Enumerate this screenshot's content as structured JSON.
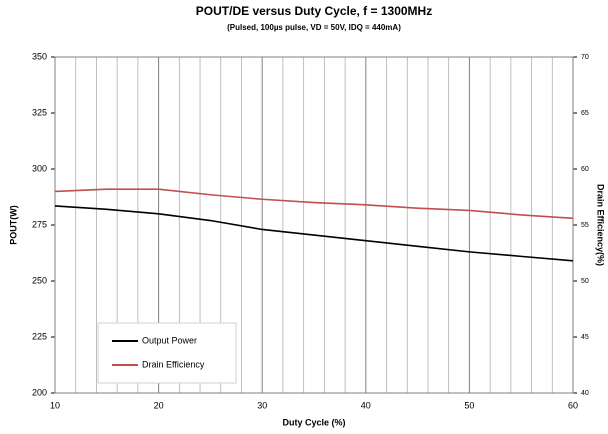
{
  "chart_data": {
    "type": "line",
    "title": "POUT/DE versus Duty Cycle, f = 1300MHz",
    "subtitle": "(Pulsed, 100µs pulse, VD = 50V, IDQ = 440mA)",
    "x_label": "Duty Cycle (%)",
    "y_label": "POUT(W)",
    "y2_label": "Drain Efficiency(%)",
    "x": [
      10,
      15,
      20,
      25,
      30,
      35,
      40,
      45,
      50,
      55,
      60
    ],
    "series": [
      {
        "name": "Output Power",
        "color": "#000000",
        "axis": "y",
        "values": [
          283.5,
          282,
          280,
          277,
          273,
          270.5,
          268,
          265.5,
          263,
          261,
          259
        ]
      },
      {
        "name": "Drain Efficiency",
        "color": "#c0504d",
        "axis": "y2",
        "values": [
          58,
          58.2,
          58.2,
          57.7,
          57.3,
          57,
          56.8,
          56.5,
          56.3,
          55.9,
          55.6
        ]
      }
    ],
    "xlim": [
      10,
      60
    ],
    "xticks": [
      10,
      20,
      30,
      40,
      50,
      60
    ],
    "xminorticks": [
      12,
      14,
      16,
      18,
      22,
      24,
      26,
      28,
      32,
      34,
      36,
      38,
      42,
      44,
      46,
      48,
      52,
      54,
      56,
      58
    ],
    "ylim": [
      200,
      350
    ],
    "yticks": [
      200,
      225,
      250,
      275,
      300,
      325,
      350
    ],
    "y2lim": [
      40,
      70
    ],
    "y2ticks": [
      40,
      45,
      50,
      55,
      60,
      65,
      70
    ],
    "grid": true,
    "legend_position": "lower left"
  }
}
